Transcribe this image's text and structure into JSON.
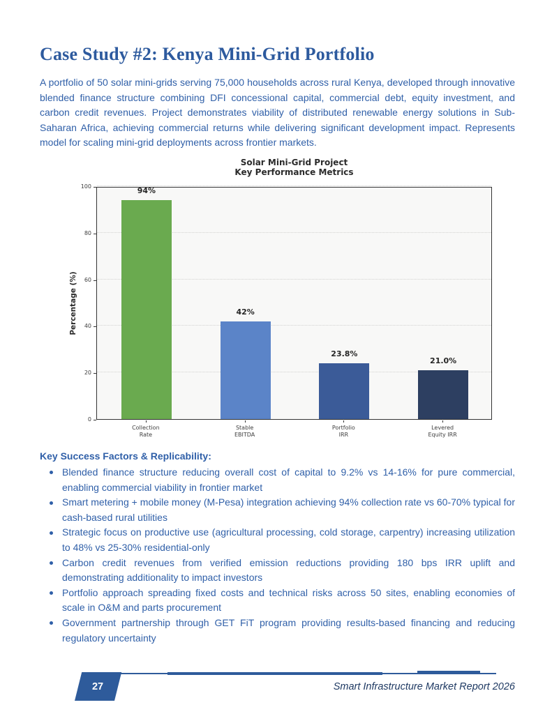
{
  "page": {
    "title": "Case Study #2: Kenya Mini-Grid Portfolio",
    "intro": "A portfolio of 50 solar mini-grids serving 75,000 households across rural Kenya, developed through innovative blended finance structure combining DFI concessional capital, commercial debt, equity investment, and carbon credit revenues. Project demonstrates viability of distributed renewable energy solutions in Sub-Saharan Africa, achieving commercial returns while delivering significant development impact. Represents model for scaling mini-grid deployments across frontier markets."
  },
  "chart_data": {
    "type": "bar",
    "title": "Solar Mini-Grid Project\nKey Performance Metrics",
    "categories": [
      "Collection\nRate",
      "Stable\nEBITDA",
      "Portfolio\nIRR",
      "Levered\nEquity IRR"
    ],
    "values": [
      94,
      42,
      23.8,
      21.0
    ],
    "value_labels": [
      "94%",
      "42%",
      "23.8%",
      "21.0%"
    ],
    "bar_colors": [
      "#6aaa4f",
      "#5b84c8",
      "#3b5b98",
      "#2d3f61"
    ],
    "xlabel": "",
    "ylabel": "Percentage (%)",
    "ylim": [
      0,
      100
    ],
    "yticks": [
      0,
      20,
      40,
      60,
      80,
      100
    ],
    "grid": true,
    "grid_style": "dotted",
    "legend": "none",
    "plot_background": "#f8f8f7"
  },
  "success": {
    "heading": "Key Success Factors & Replicability:",
    "bullets": [
      "Blended finance structure reducing overall cost of capital to 9.2% vs 14-16% for pure commercial, enabling commercial viability in frontier market",
      "Smart metering + mobile money (M-Pesa) integration achieving 94% collection rate vs 60-70% typical for cash-based rural utilities",
      "Strategic focus on productive use (agricultural processing, cold storage, carpentry) increasing utilization to 48% vs 25-30% residential-only",
      "Carbon credit revenues from verified emission reductions providing 180 bps IRR uplift and demonstrating additionality to impact investors",
      "Portfolio approach spreading fixed costs and technical risks across 50 sites, enabling economies of scale in O&M and parts procurement",
      "Government partnership through GET FiT program providing results-based financing and reducing regulatory uncertainty"
    ]
  },
  "footer": {
    "page_number": "27",
    "report_title": "Smart Infrastructure Market Report 2026"
  },
  "colors": {
    "heading_blue": "#2d5a9e",
    "body_blue": "#2f5fa8",
    "footer_blue": "#2e5b9b",
    "footer_text": "#1f3a63",
    "chart_text": "#2b2b2b"
  }
}
